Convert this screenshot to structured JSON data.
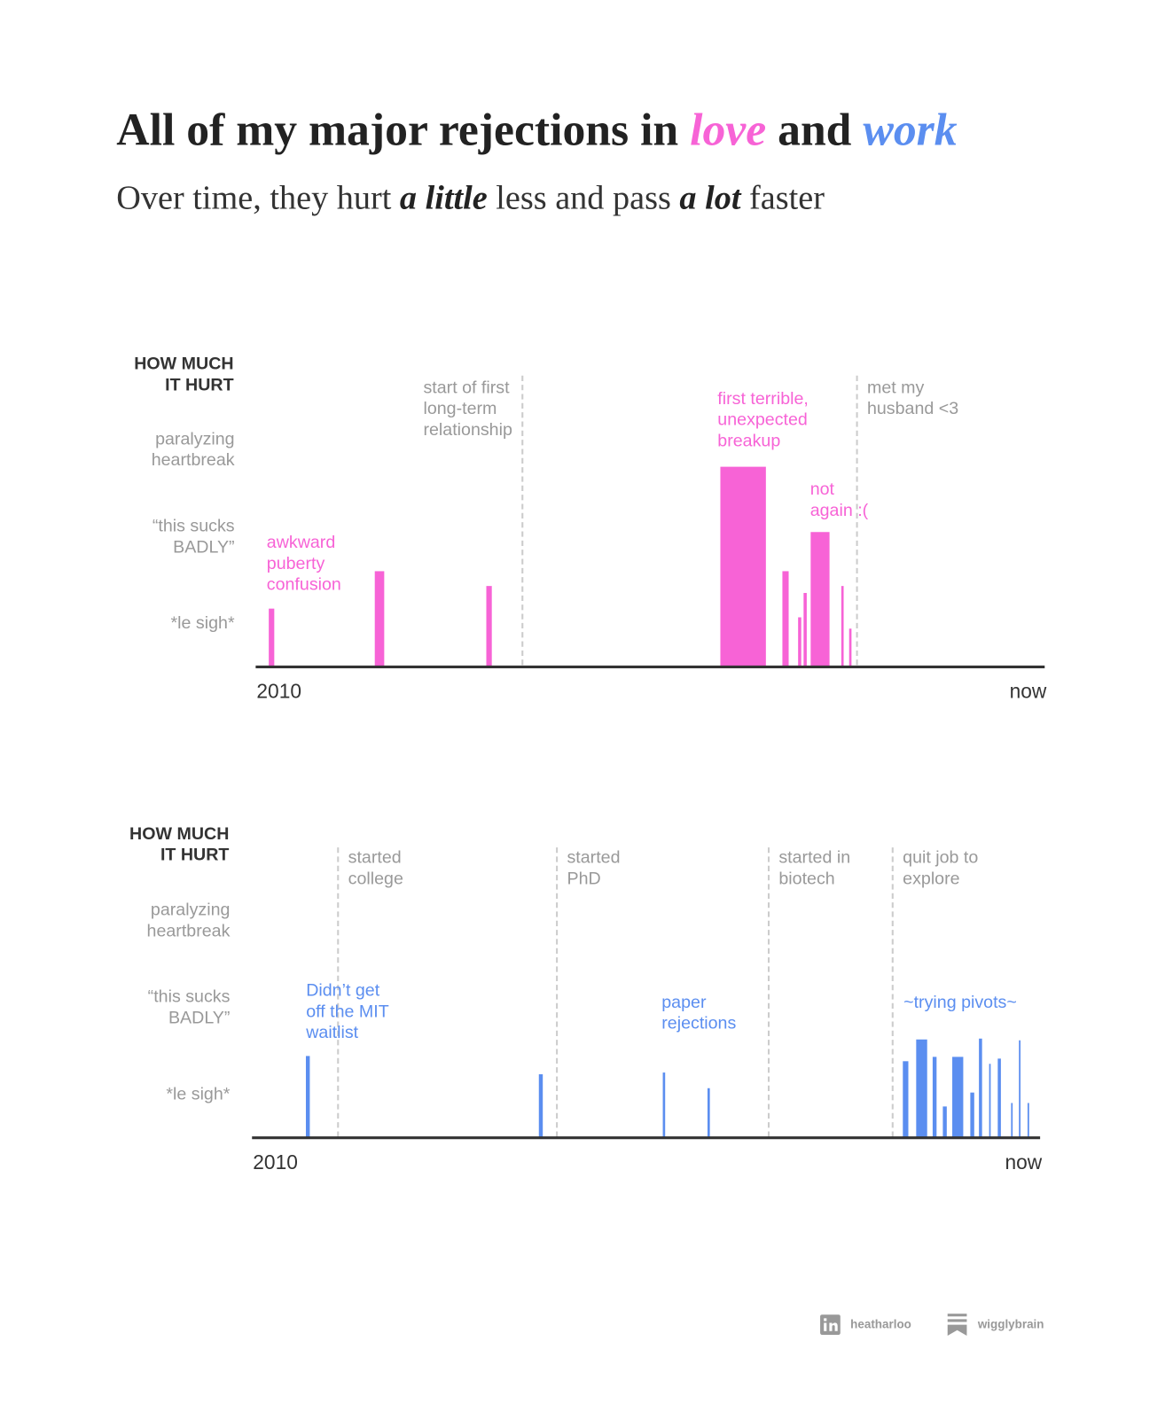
{
  "header": {
    "title": [
      "All of my major rejections in ",
      "love",
      " and ",
      "work"
    ],
    "subtitle": [
      "Over time, they hurt ",
      "a little",
      " less and pass ",
      "a lot",
      " faster"
    ]
  },
  "chart_data": [
    {
      "type": "bar",
      "color": "#f763d6",
      "y_label": "HOW MUCH\nIT HURT",
      "ylim": [
        0,
        3.5
      ],
      "yticks": [
        {
          "value": 0.5,
          "label": "*le sigh*"
        },
        {
          "value": 1.5,
          "label": "“this sucks\nBADLY”"
        },
        {
          "value": 2.5,
          "label": "paralyzing\nheartbreak"
        }
      ],
      "xlim": [
        0,
        100
      ],
      "xticks": [
        {
          "value": 0,
          "label": "2010"
        },
        {
          "value": 100,
          "label": "now"
        }
      ],
      "x_start": [
        1.2,
        14.7,
        28.9,
        58.7,
        66.6,
        68.6,
        69.3,
        70.2,
        74.1,
        75.1
      ],
      "x_end": [
        1.9,
        15.9,
        29.6,
        64.5,
        67.4,
        69.0,
        69.7,
        72.6,
        74.4,
        75.4
      ],
      "values": [
        0.67,
        1.1,
        0.93,
        2.3,
        1.1,
        0.57,
        0.85,
        1.55,
        0.93,
        0.44
      ],
      "milestones": {
        "x": [
          33.5,
          76.1
        ],
        "labels": [
          "start of first\nlong-term\nrelationship",
          "met my\nhusband <3"
        ]
      },
      "annotations": [
        "awkward\npuberty\nconfusion",
        "first terrible,\nunexpected\nbreakup",
        "not\nagain :("
      ]
    },
    {
      "type": "bar",
      "color": "#5b8ef0",
      "y_label": "HOW MUCH\nIT HURT",
      "ylim": [
        0,
        3.5
      ],
      "yticks": [
        {
          "value": 0.5,
          "label": "*le sigh*"
        },
        {
          "value": 1.5,
          "label": "“this sucks\nBADLY”"
        },
        {
          "value": 2.5,
          "label": "paralyzing\nheartbreak"
        }
      ],
      "xlim": [
        0,
        100
      ],
      "xticks": [
        {
          "value": 0,
          "label": "2010"
        },
        {
          "value": 100,
          "label": "now"
        }
      ],
      "x_start": [
        6.4,
        36.1,
        51.9,
        57.6,
        82.5,
        84.2,
        86.3,
        87.6,
        88.8,
        91.1,
        92.2,
        93.5,
        94.6,
        96.3,
        97.3,
        98.4
      ],
      "x_end": [
        6.9,
        36.6,
        52.2,
        57.9,
        83.2,
        85.6,
        86.8,
        88.1,
        90.2,
        91.6,
        92.6,
        93.7,
        95.0,
        96.5,
        97.5,
        98.6
      ],
      "values": [
        0.94,
        0.73,
        0.75,
        0.57,
        0.88,
        1.13,
        0.93,
        0.36,
        0.93,
        0.52,
        1.14,
        0.85,
        0.91,
        0.4,
        1.12,
        0.4
      ],
      "milestones": {
        "x": [
          10.5,
          38.4,
          65.4,
          81.2
        ],
        "labels": [
          "started\ncollege",
          "started\nPhD",
          "started in\nbiotech",
          "quit job to\nexplore"
        ]
      },
      "annotations": [
        "Didn’t get\noff the MIT\nwaitlist",
        "paper\nrejections",
        "~trying pivots~"
      ]
    }
  ],
  "footer": {
    "linkedin": "heatharloo",
    "substack": "wigglybrain"
  }
}
